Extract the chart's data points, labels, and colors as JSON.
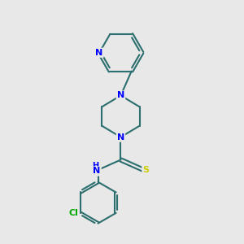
{
  "bg_color": "#e8e8e8",
  "bond_color": "#2d6e6e",
  "nitrogen_color": "#0000ff",
  "sulfur_color": "#cccc00",
  "chlorine_color": "#00aa00",
  "line_width": 1.5,
  "fig_w": 3.0,
  "fig_h": 3.0,
  "dpi": 100,
  "xlim": [
    2.0,
    8.5
  ],
  "ylim": [
    0.3,
    9.8
  ]
}
